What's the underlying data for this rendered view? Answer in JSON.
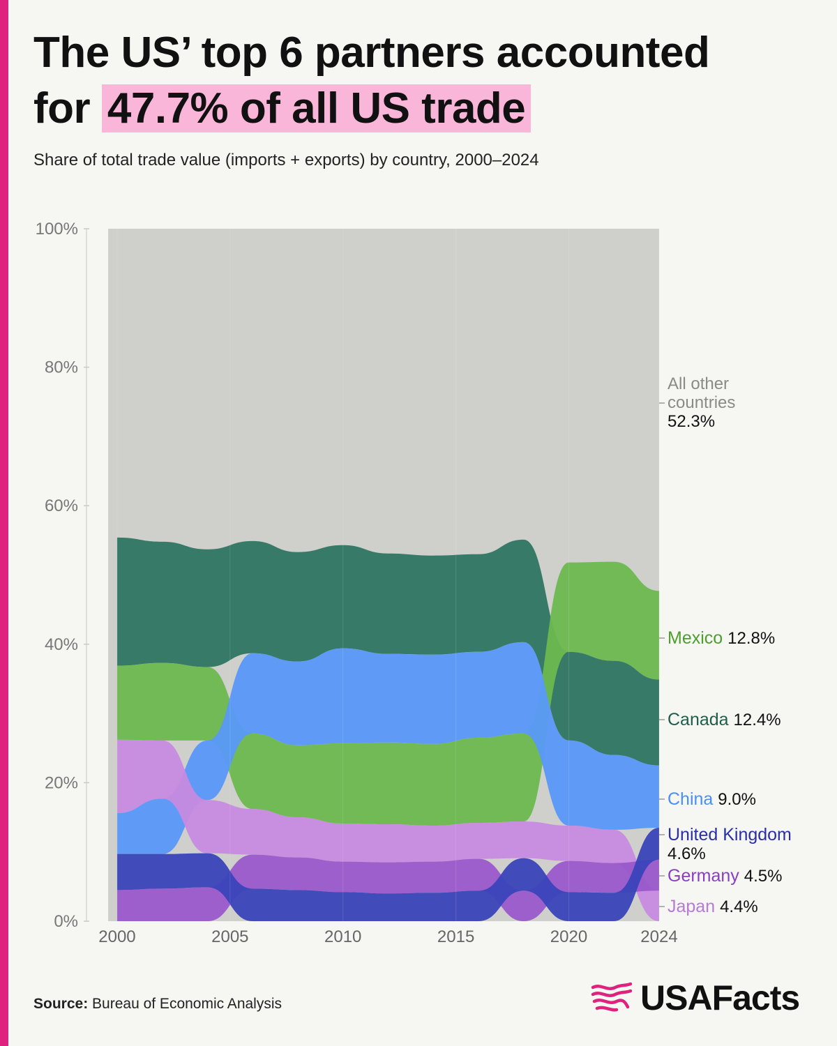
{
  "title": {
    "line1": "The US’ top 6 partners accounted",
    "for_word": "for",
    "highlight": "47.7% of all US trade"
  },
  "subtitle": "Share of total trade value (imports + exports) by country, 2000–2024",
  "source": {
    "label": "Source:",
    "text": "Bureau of Economic Analysis"
  },
  "brand": {
    "name": "USAFacts",
    "icon": "flag-logo-icon"
  },
  "colors": {
    "Mexico": "#6cb84f",
    "Canada": "#2f7562",
    "China": "#5898f8",
    "United Kingdom": "#3a43b8",
    "Germany": "#9a58cb",
    "Japan": "#c78ae0",
    "All other countries": "#cfcfcb",
    "accent": "#e0227f",
    "highlight": "#f9b6d8"
  },
  "chart_data": {
    "type": "area",
    "subtype": "ranked stacked area (bump area)",
    "title": "Share of total trade value (imports + exports) by country, 2000–2024",
    "xlabel": "",
    "ylabel": "",
    "ylim": [
      0,
      100
    ],
    "y_ticks": [
      "0%",
      "20%",
      "40%",
      "60%",
      "80%",
      "100%"
    ],
    "x_ticks": [
      "2000",
      "2005",
      "2010",
      "2015",
      "2020",
      "2024"
    ],
    "x": [
      2000,
      2002,
      2004,
      2006,
      2008,
      2010,
      2012,
      2014,
      2016,
      2018,
      2020,
      2022,
      2024
    ],
    "series": [
      {
        "name": "Canada",
        "values": [
          18.5,
          17.5,
          17.0,
          16.2,
          15.8,
          14.9,
          14.5,
          14.3,
          14.1,
          14.8,
          12.8,
          13.6,
          12.4
        ]
      },
      {
        "name": "Mexico",
        "values": [
          10.7,
          11.2,
          10.6,
          10.9,
          10.4,
          11.6,
          11.8,
          11.8,
          12.3,
          12.7,
          12.9,
          14.3,
          12.8
        ]
      },
      {
        "name": "China",
        "values": [
          5.9,
          8.0,
          8.6,
          11.6,
          12.1,
          13.7,
          12.8,
          12.9,
          12.4,
          13.2,
          12.3,
          10.8,
          9.0
        ]
      },
      {
        "name": "Japan",
        "values": [
          10.6,
          8.4,
          7.7,
          6.6,
          5.8,
          5.5,
          5.5,
          5.2,
          5.2,
          5.3,
          5.1,
          4.8,
          4.4
        ]
      },
      {
        "name": "Germany",
        "values": [
          4.5,
          4.7,
          4.9,
          4.9,
          4.7,
          4.4,
          4.5,
          4.5,
          4.6,
          4.4,
          4.5,
          4.3,
          4.5
        ]
      },
      {
        "name": "United Kingdom",
        "values": [
          5.2,
          5.0,
          4.9,
          4.7,
          4.5,
          4.2,
          4.0,
          4.1,
          4.4,
          4.7,
          4.2,
          4.1,
          4.6
        ]
      }
    ],
    "remainder": {
      "name": "All other countries",
      "value_2024": 52.3
    },
    "end_labels": [
      {
        "name": "All other",
        "name2": "countries",
        "value": "52.3%"
      },
      {
        "name": "Mexico",
        "value": "12.8%"
      },
      {
        "name": "Canada",
        "value": "12.4%"
      },
      {
        "name": "China",
        "value": "9.0%"
      },
      {
        "name": "United Kingdom",
        "value": "4.6%"
      },
      {
        "name": "Germany",
        "value": "4.5%"
      },
      {
        "name": "Japan",
        "value": "4.4%"
      }
    ]
  }
}
